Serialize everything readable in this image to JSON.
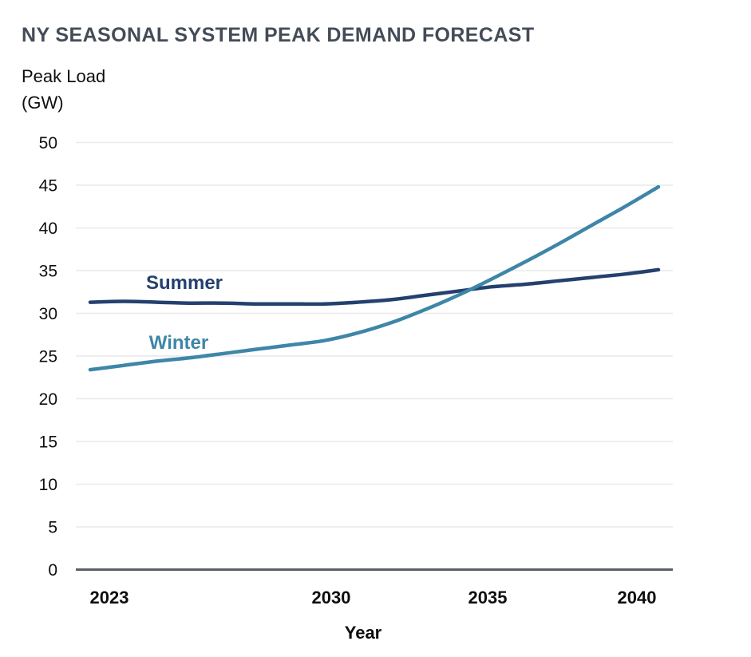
{
  "title": "NY SEASONAL SYSTEM PEAK DEMAND FORECAST",
  "y_axis": {
    "unit_line1": "Peak Load",
    "unit_line2": "(GW)"
  },
  "chart_data": {
    "type": "line",
    "title": "NY SEASONAL SYSTEM PEAK DEMAND FORECAST",
    "xlabel": "Year",
    "ylabel": "Peak Load (GW)",
    "x": [
      2023,
      2024,
      2025,
      2026,
      2027,
      2028,
      2029,
      2030,
      2031,
      2032,
      2033,
      2034,
      2035,
      2036,
      2037,
      2038,
      2039,
      2040
    ],
    "series": [
      {
        "name": "Summer",
        "color": "#24406e",
        "values": [
          31.3,
          31.4,
          31.3,
          31.2,
          31.2,
          31.1,
          31.1,
          31.1,
          31.3,
          31.6,
          32.1,
          32.6,
          33.1,
          33.4,
          33.8,
          34.2,
          34.6,
          35.1
        ]
      },
      {
        "name": "Winter",
        "color": "#3e86a8",
        "values": [
          23.4,
          23.9,
          24.4,
          24.8,
          25.3,
          25.8,
          26.3,
          26.8,
          27.7,
          28.9,
          30.4,
          32.1,
          34.0,
          36.0,
          38.1,
          40.3,
          42.5,
          44.8
        ]
      }
    ],
    "y_ticks": [
      0,
      5,
      10,
      15,
      20,
      25,
      30,
      35,
      40,
      45,
      50
    ],
    "x_ticks": [
      2023,
      2030,
      2035,
      2040
    ],
    "ylim": [
      0,
      50
    ],
    "grid": "horizontal",
    "legend": "inline-labels"
  },
  "colors": {
    "title_text": "#434c57",
    "gridline": "#e9e9e9",
    "axis_line": "#5a6067",
    "tick_text": "#0e0e0e"
  }
}
